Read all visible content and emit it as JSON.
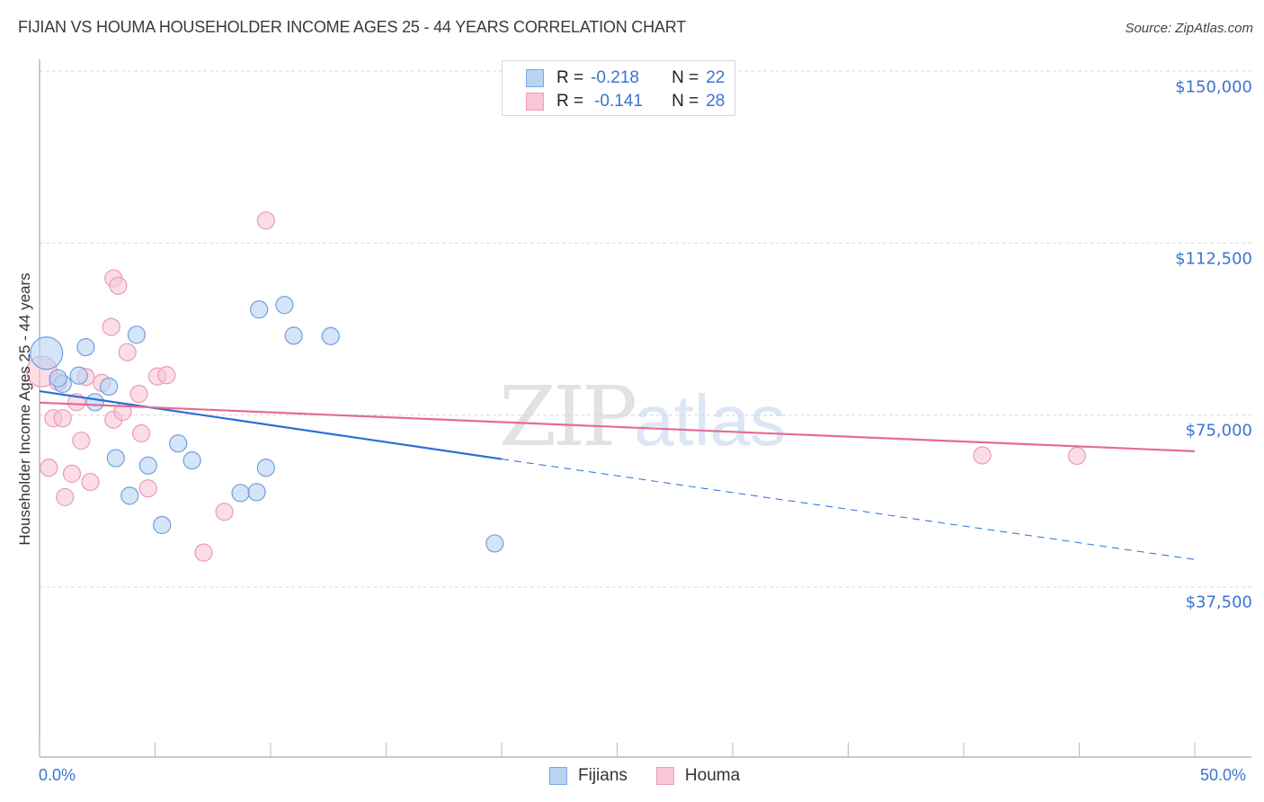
{
  "header": {
    "title": "FIJIAN VS HOUMA HOUSEHOLDER INCOME AGES 25 - 44 YEARS CORRELATION CHART",
    "source": "Source: ZipAtlas.com"
  },
  "watermark": {
    "zip": "ZIP",
    "atlas": "atlas"
  },
  "legend_top": {
    "rows": [
      {
        "r_label": "R =",
        "r_value": "-0.218",
        "n_label": "N =",
        "n_value": "22",
        "color": "#b9d3f3"
      },
      {
        "r_label": "R =",
        "r_value": "-0.141",
        "n_label": "N =",
        "n_value": "28",
        "color": "#f8c6d5"
      }
    ]
  },
  "legend_bottom": {
    "items": [
      {
        "label": "Fijians",
        "color": "#b9d3f3"
      },
      {
        "label": "Houma",
        "color": "#f8c6d5"
      }
    ]
  },
  "axes": {
    "ylabel": "Householder Income Ages 25 - 44 years",
    "yticks": [
      "$150,000",
      "$112,500",
      "$75,000",
      "$37,500"
    ],
    "xticks": [
      "0.0%",
      "50.0%"
    ]
  },
  "colors": {
    "fijians_fill": "#b9d3f3",
    "fijians_stroke": "#6f9fdd",
    "fijians_line": "#2a6fd6",
    "houma_fill": "#f8c6d5",
    "houma_stroke": "#ec9bb4",
    "houma_line": "#e56b93",
    "tick_label": "#3a74d0"
  },
  "chart_data": {
    "type": "scatter",
    "title": "FIJIAN VS HOUMA HOUSEHOLDER INCOME AGES 25 - 44 YEARS CORRELATION CHART",
    "xlabel": "",
    "ylabel": "Householder Income Ages 25 - 44 years",
    "xlim": [
      0,
      50
    ],
    "ylim": [
      15000,
      153000
    ],
    "x_unit": "%",
    "y_ticks": [
      37500,
      75000,
      112500,
      150000
    ],
    "x_ticks": [
      0,
      50
    ],
    "grid": "horizontal dashed",
    "legend_position": "top-center and bottom-center",
    "series": [
      {
        "name": "Fijians",
        "R": -0.218,
        "N": 22,
        "points": [
          [
            0.3,
            88500
          ],
          [
            2.0,
            89800
          ],
          [
            1.0,
            81800
          ],
          [
            1.7,
            83600
          ],
          [
            0.8,
            83000
          ],
          [
            3.0,
            81200
          ],
          [
            2.4,
            77800
          ],
          [
            4.2,
            92500
          ],
          [
            3.3,
            65600
          ],
          [
            3.9,
            57400
          ],
          [
            4.7,
            64000
          ],
          [
            5.3,
            51000
          ],
          [
            6.0,
            68800
          ],
          [
            6.6,
            65100
          ],
          [
            9.5,
            98000
          ],
          [
            10.6,
            99000
          ],
          [
            11.0,
            92300
          ],
          [
            12.6,
            92200
          ],
          [
            9.4,
            58200
          ],
          [
            8.7,
            58000
          ],
          [
            9.8,
            63500
          ],
          [
            19.7,
            47000
          ]
        ],
        "trend": {
          "x0": 0,
          "y0": 80200,
          "x1": 20,
          "y1": 65400,
          "dashed_to": {
            "x": 50,
            "y": 43500
          }
        }
      },
      {
        "name": "Houma",
        "R": -0.141,
        "N": 28,
        "points": [
          [
            0.1,
            84500
          ],
          [
            0.8,
            82200
          ],
          [
            2.0,
            83300
          ],
          [
            2.7,
            82000
          ],
          [
            3.2,
            74000
          ],
          [
            4.3,
            79600
          ],
          [
            3.6,
            75700
          ],
          [
            1.6,
            77800
          ],
          [
            0.6,
            74300
          ],
          [
            1.0,
            74300
          ],
          [
            1.8,
            69400
          ],
          [
            0.4,
            63500
          ],
          [
            1.4,
            62200
          ],
          [
            2.2,
            60400
          ],
          [
            1.1,
            57100
          ],
          [
            4.7,
            59000
          ],
          [
            4.4,
            71000
          ],
          [
            5.1,
            83400
          ],
          [
            5.5,
            83700
          ],
          [
            3.1,
            94200
          ],
          [
            3.8,
            88700
          ],
          [
            3.2,
            104800
          ],
          [
            3.4,
            103200
          ],
          [
            9.8,
            117400
          ],
          [
            8.0,
            53900
          ],
          [
            7.1,
            45000
          ],
          [
            40.8,
            66200
          ],
          [
            44.9,
            66100
          ]
        ],
        "trend": {
          "x0": 0,
          "y0": 77700,
          "x1": 50,
          "y1": 67100
        }
      }
    ]
  }
}
